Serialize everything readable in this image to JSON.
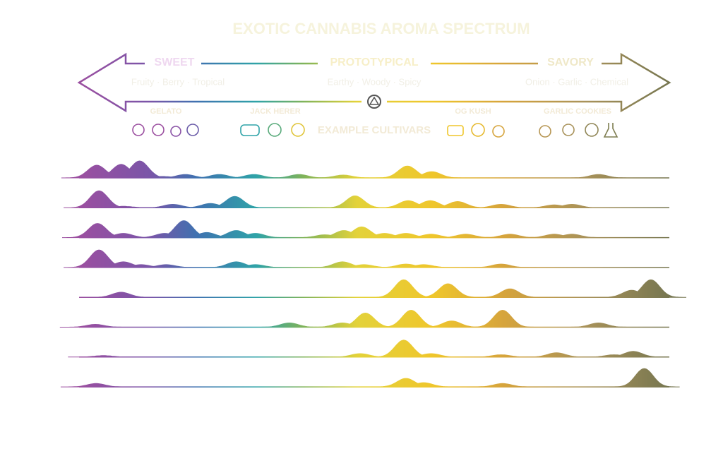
{
  "chart_data": {
    "type": "ridgeline",
    "title": "EXOTIC CANNABIS AROMA SPECTRUM",
    "spectrum": {
      "sweet": "SWEET",
      "sweet_notes": "Fruity · Berry · Tropical",
      "prototypical": "PROTOTYPICAL",
      "prototypical_notes": "Earthy · Woody · Spicy",
      "savory": "SAVORY",
      "savory_notes": "Onion · Garlic · Chemical"
    },
    "cultivars": [
      "GELATO",
      "JACK HERER",
      "EXAMPLE CULTIVARS",
      "OG KUSH",
      "GARLIC COOKIES"
    ],
    "xlim": [
      0,
      80
    ],
    "ylim": [
      0,
      1
    ],
    "series": [
      {
        "x": [
          2.4,
          5.7,
          8.2,
          11.3,
          14.4,
          19.0,
          23.7,
          29.8,
          35.8,
          44.5,
          47.8,
          70.4
        ],
        "values": [
          0.45,
          0.48,
          0.6,
          0.05,
          0.12,
          0.12,
          0.12,
          0.12,
          0.1,
          0.42,
          0.22,
          0.12
        ]
      },
      {
        "x": [
          2.7,
          6.0,
          12.7,
          17.8,
          21.1,
          37.4,
          44.6,
          47.6,
          51.3,
          57.2,
          64.4,
          66.8
        ],
        "values": [
          0.6,
          0.05,
          0.12,
          0.15,
          0.4,
          0.42,
          0.25,
          0.25,
          0.22,
          0.12,
          0.1,
          0.12
        ]
      },
      {
        "x": [
          2.5,
          6.0,
          11.6,
          14.2,
          17.3,
          21.3,
          23.9,
          33.3,
          35.9,
          38.3,
          41.4,
          44.3,
          47.7,
          52.4,
          58.4,
          64.4,
          66.8
        ],
        "values": [
          0.5,
          0.15,
          0.15,
          0.6,
          0.18,
          0.25,
          0.15,
          0.1,
          0.25,
          0.38,
          0.15,
          0.15,
          0.12,
          0.12,
          0.12,
          0.12,
          0.12
        ]
      },
      {
        "x": [
          2.7,
          6.0,
          8.4,
          11.8,
          21.3,
          23.9,
          35.7,
          38.6,
          44.3,
          46.7,
          57.2
        ],
        "values": [
          0.62,
          0.2,
          0.1,
          0.1,
          0.2,
          0.1,
          0.2,
          0.1,
          0.12,
          0.1,
          0.12
        ]
      },
      {
        "x": [
          5.7,
          44.0,
          50.0,
          58.4,
          74.9,
          77.5
        ],
        "values": [
          0.18,
          0.62,
          0.48,
          0.3,
          0.25,
          0.62
        ]
      },
      {
        "x": [
          2.2,
          28.5,
          35.7,
          38.8,
          45.0,
          50.5,
          57.4,
          70.4
        ],
        "values": [
          0.1,
          0.15,
          0.15,
          0.5,
          0.6,
          0.22,
          0.6,
          0.15
        ]
      },
      {
        "x": [
          3.3,
          38.1,
          44.0,
          47.7,
          57.2,
          64.7,
          72.5,
          75.1
        ],
        "values": [
          0.05,
          0.12,
          0.6,
          0.12,
          0.08,
          0.15,
          0.08,
          0.2
        ]
      },
      {
        "x": [
          2.3,
          44.3,
          46.7,
          57.4,
          76.6
        ],
        "values": [
          0.12,
          0.3,
          0.15,
          0.12,
          0.65
        ]
      }
    ]
  }
}
